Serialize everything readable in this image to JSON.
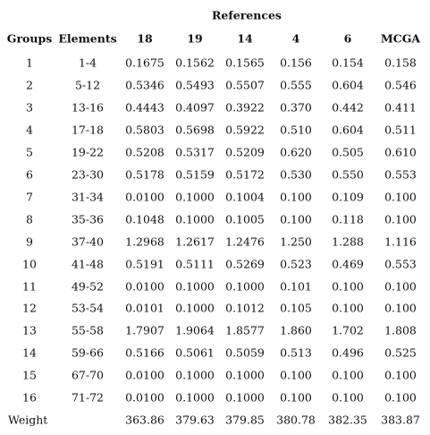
{
  "table": {
    "title": "References",
    "headers": [
      "Groups",
      "Elements",
      "18",
      "19",
      "14",
      "4",
      "6",
      "MCGA"
    ],
    "rows": [
      [
        "1",
        "1-4",
        "0.1675",
        "0.1562",
        "0.1565",
        "0.156",
        "0.154",
        "0.158"
      ],
      [
        "2",
        "5-12",
        "0.5346",
        "0.5493",
        "0.5507",
        "0.555",
        "0.604",
        "0.546"
      ],
      [
        "3",
        "13-16",
        "0.4443",
        "0.4097",
        "0.3922",
        "0.370",
        "0.442",
        "0.411"
      ],
      [
        "4",
        "17-18",
        "0.5803",
        "0.5698",
        "0.5922",
        "0.510",
        "0.604",
        "0.511"
      ],
      [
        "5",
        "19-22",
        "0.5208",
        "0.5317",
        "0.5209",
        "0.620",
        "0.505",
        "0.610"
      ],
      [
        "6",
        "23-30",
        "0.5178",
        "0.5159",
        "0.5172",
        "0.530",
        "0.550",
        "0.553"
      ],
      [
        "7",
        "31-34",
        "0.0100",
        "0.1000",
        "0.1004",
        "0.100",
        "0.109",
        "0.100"
      ],
      [
        "8",
        "35-36",
        "0.1048",
        "0.1000",
        "0.1005",
        "0.100",
        "0.118",
        "0.100"
      ],
      [
        "9",
        "37-40",
        "1.2968",
        "1.2617",
        "1.2476",
        "1.250",
        "1.288",
        "1.116"
      ],
      [
        "10",
        "41-48",
        "0.5191",
        "0.5111",
        "0.5269",
        "0.523",
        "0.469",
        "0.553"
      ],
      [
        "11",
        "49-52",
        "0.0100",
        "0.1000",
        "0.1000",
        "0.101",
        "0.100",
        "0.100"
      ],
      [
        "12",
        "53-54",
        "0.0101",
        "0.1000",
        "0.1012",
        "0.105",
        "0.100",
        "0.100"
      ],
      [
        "13",
        "55-58",
        "1.7907",
        "1.9064",
        "1.8577",
        "1.860",
        "1.702",
        "1.808"
      ],
      [
        "14",
        "59-66",
        "0.5166",
        "0.5061",
        "0.5059",
        "0.513",
        "0.496",
        "0.525"
      ],
      [
        "15",
        "67-70",
        "0.0100",
        "0.1000",
        "0.1000",
        "0.100",
        "0.100",
        "0.100"
      ],
      [
        "16",
        "71-72",
        "0.0100",
        "0.1000",
        "0.1000",
        "0.100",
        "0.100",
        "0.100"
      ]
    ],
    "weight": {
      "label": "Weight",
      "values": [
        "363.86",
        "379.63",
        "379.85",
        "380.78",
        "382.35",
        "383.87"
      ]
    }
  }
}
